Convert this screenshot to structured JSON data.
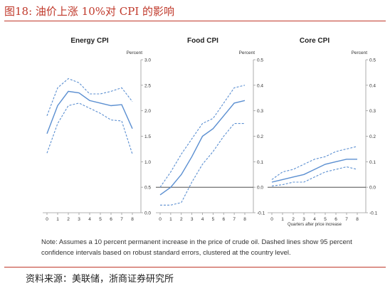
{
  "figure": {
    "title": "图18:   油价上涨 10%对 CPI 的影响",
    "note": "Note: Assumes a 10 percent permanent increase in the price of crude oil. Dashed lines show 95 percent confidence intervals based on robust standard errors, clustered at the country level.",
    "source": "资料来源：美联储，浙商证券研究所",
    "line_color": "#5b8fd1"
  },
  "chart_data": [
    {
      "type": "line",
      "title": "Energy CPI",
      "ylabel": "Percent",
      "xlabel": "",
      "x": [
        0,
        1,
        2,
        3,
        4,
        5,
        6,
        7,
        8
      ],
      "ylim": [
        0.0,
        3.0
      ],
      "yticks": [
        "0.0",
        "0.5",
        "1.0",
        "1.5",
        "2.0",
        "2.5",
        "3.0"
      ],
      "series": [
        {
          "values": [
            1.55,
            2.1,
            2.38,
            2.35,
            2.2,
            2.15,
            2.1,
            2.12,
            1.65
          ],
          "style": "solid"
        },
        {
          "values": [
            1.9,
            2.45,
            2.63,
            2.55,
            2.33,
            2.33,
            2.38,
            2.45,
            2.18
          ],
          "style": "dashed"
        },
        {
          "values": [
            1.17,
            1.75,
            2.1,
            2.15,
            2.05,
            1.95,
            1.82,
            1.8,
            1.15
          ],
          "style": "dashed"
        }
      ],
      "grid": false
    },
    {
      "type": "line",
      "title": "Food CPI",
      "ylabel": "Percent",
      "xlabel": "",
      "x": [
        0,
        1,
        2,
        3,
        4,
        5,
        6,
        7,
        8
      ],
      "ylim": [
        -0.1,
        0.5
      ],
      "yticks": [
        "-0.1",
        "0.0",
        "0.1",
        "0.2",
        "0.3",
        "0.4",
        "0.5"
      ],
      "series": [
        {
          "values": [
            -0.03,
            0.0,
            0.05,
            0.12,
            0.2,
            0.23,
            0.28,
            0.33,
            0.34
          ],
          "style": "solid"
        },
        {
          "values": [
            0.0,
            0.06,
            0.13,
            0.19,
            0.25,
            0.27,
            0.33,
            0.39,
            0.4
          ],
          "style": "dashed"
        },
        {
          "values": [
            -0.07,
            -0.07,
            -0.06,
            0.02,
            0.09,
            0.14,
            0.2,
            0.25,
            0.25
          ],
          "style": "dashed"
        }
      ],
      "grid": false
    },
    {
      "type": "line",
      "title": "Core CPI",
      "ylabel": "Percent",
      "xlabel": "Quarters after price increase",
      "x": [
        0,
        1,
        2,
        3,
        4,
        5,
        6,
        7,
        8
      ],
      "ylim": [
        -0.1,
        0.5
      ],
      "yticks": [
        "-0.1",
        "0.0",
        "0.1",
        "0.2",
        "0.3",
        "0.4",
        "0.5"
      ],
      "series": [
        {
          "values": [
            0.02,
            0.03,
            0.04,
            0.05,
            0.07,
            0.09,
            0.1,
            0.11,
            0.11
          ],
          "style": "solid"
        },
        {
          "values": [
            0.03,
            0.06,
            0.07,
            0.09,
            0.11,
            0.12,
            0.14,
            0.15,
            0.16
          ],
          "style": "dashed"
        },
        {
          "values": [
            0.005,
            0.01,
            0.02,
            0.02,
            0.04,
            0.06,
            0.07,
            0.08,
            0.07
          ],
          "style": "dashed"
        }
      ],
      "grid": false
    }
  ]
}
